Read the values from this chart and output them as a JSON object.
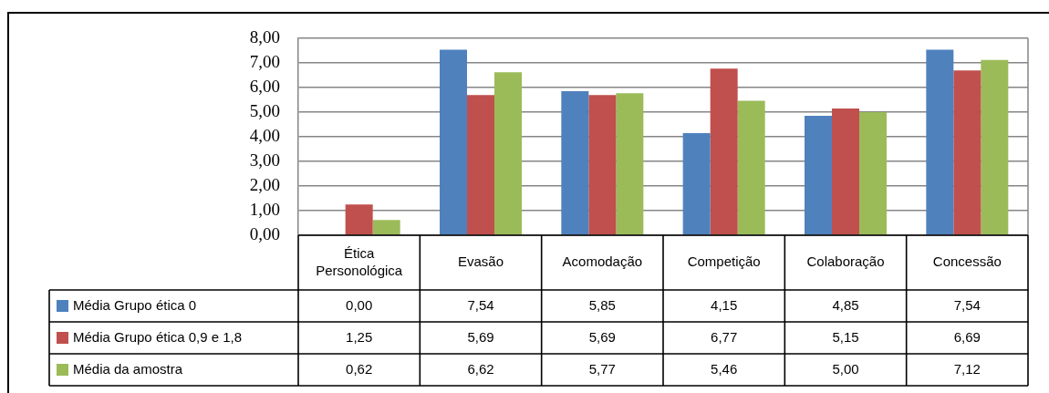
{
  "chart_data": {
    "type": "bar",
    "categories": [
      "Ética Personológica",
      "Evasão",
      "Acomodação",
      "Competição",
      "Colaboração",
      "Concessão"
    ],
    "series": [
      {
        "name": "Média Grupo ética 0",
        "color": "#4f81bd",
        "values": [
          0,
          7.54,
          5.85,
          4.15,
          4.85,
          7.54
        ],
        "value_labels": [
          "0,00",
          "7,54",
          "5,85",
          "4,15",
          "4,85",
          "7,54"
        ]
      },
      {
        "name": "Média Grupo ética 0,9 e 1,8",
        "color": "#c0504d",
        "values": [
          1.25,
          5.69,
          5.69,
          6.77,
          5.15,
          6.69
        ],
        "value_labels": [
          "1,25",
          "5,69",
          "5,69",
          "6,77",
          "5,15",
          "6,69"
        ]
      },
      {
        "name": "Média da amostra",
        "color": "#9bbb59",
        "values": [
          0.62,
          6.62,
          5.77,
          5.46,
          5.0,
          7.12
        ],
        "value_labels": [
          "0,62",
          "6,62",
          "5,77",
          "5,46",
          "5,00",
          "7,12"
        ]
      }
    ],
    "ylim": [
      0,
      8
    ],
    "yticks": [
      {
        "value": 0,
        "label": "0,00"
      },
      {
        "value": 1,
        "label": "1,00"
      },
      {
        "value": 2,
        "label": "2,00"
      },
      {
        "value": 3,
        "label": "3,00"
      },
      {
        "value": 4,
        "label": "4,00"
      },
      {
        "value": 5,
        "label": "5,00"
      },
      {
        "value": 6,
        "label": "6,00"
      },
      {
        "value": 7,
        "label": "7,00"
      },
      {
        "value": 8,
        "label": "8,00"
      }
    ],
    "grid": "y",
    "legend": "bottom"
  }
}
